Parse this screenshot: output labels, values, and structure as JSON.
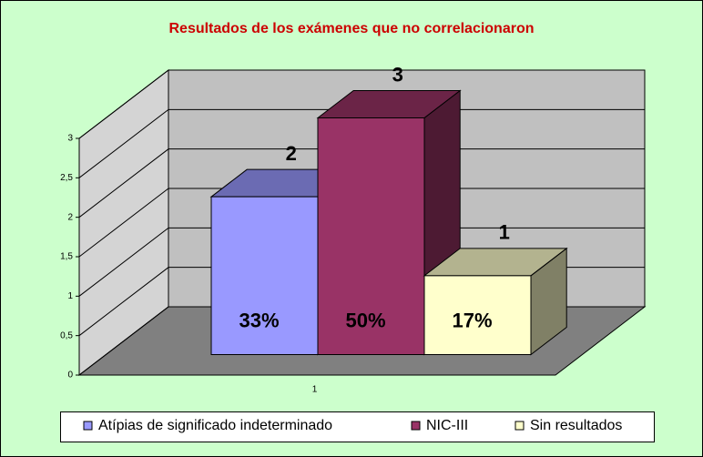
{
  "chart_data": {
    "type": "bar3d",
    "title": "Resultados de los exámenes que no correlacionaron",
    "categories": [
      "1"
    ],
    "series": [
      {
        "name": "Atípias de significado indeterminado",
        "color": "#9999ff",
        "values": [
          2
        ],
        "share": {
          "value": 33,
          "label": "33%"
        }
      },
      {
        "name": "NIC-III",
        "color": "#993366",
        "values": [
          3
        ],
        "share": {
          "value": 50,
          "label": "50%"
        }
      },
      {
        "name": "Sin resultados",
        "color": "#ffffcc",
        "values": [
          1
        ],
        "share": {
          "value": 17,
          "label": "17%"
        }
      }
    ],
    "ylim": [
      0,
      3
    ],
    "yticks": [
      0,
      {
        "value": 0.5,
        "label": "0,5"
      },
      1,
      {
        "value": 1.5,
        "label": "1,5"
      },
      2,
      {
        "value": 2.5,
        "label": "2,5"
      },
      3
    ],
    "grid": true,
    "legend": "bottom"
  }
}
